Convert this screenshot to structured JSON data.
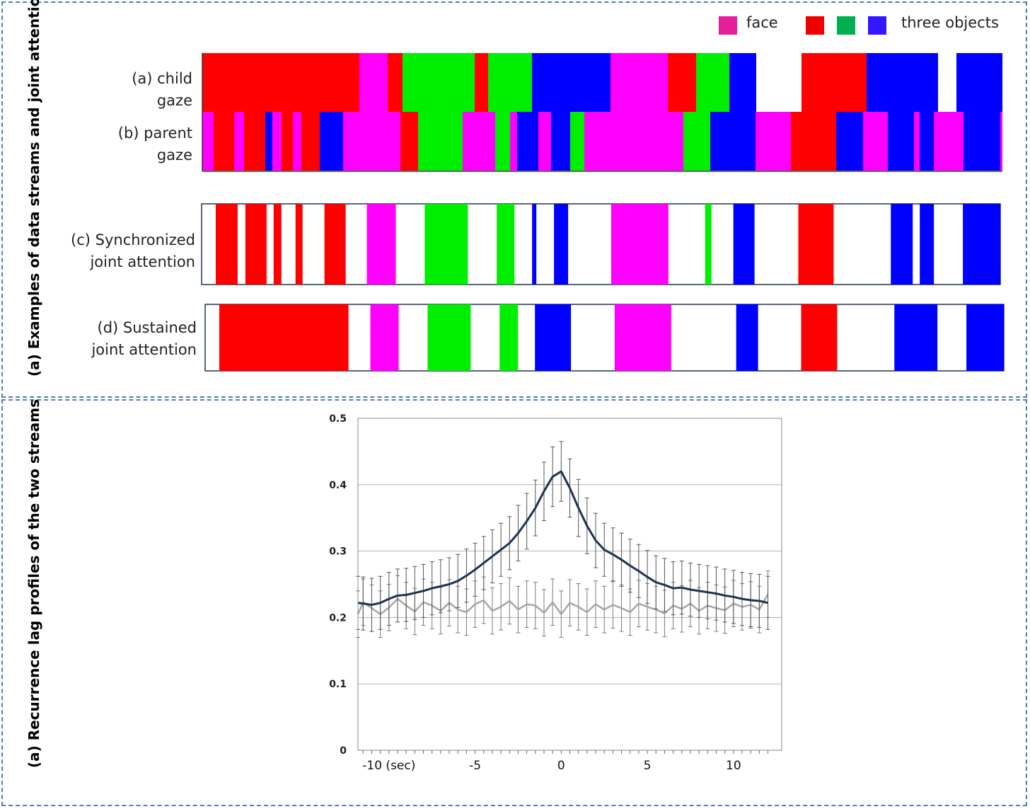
{
  "colors": {
    "face": "#ff00ff",
    "red": "#ff0000",
    "green": "#00ee00",
    "blue": "#0000ff",
    "legend_face": "#e61e9a",
    "legend_red": "#ee0000",
    "legend_green": "#00b050",
    "legend_blue": "#3316ff",
    "panel_border": "#4f7fb8"
  },
  "top_panel": {
    "side_label": "(a) Examples of data streams and joint attention",
    "legend": {
      "face_label": "face",
      "objects_label": "three objects"
    },
    "rows": {
      "child": [
        "(a) child",
        "gaze"
      ],
      "parent": [
        "(b) parent",
        "gaze"
      ],
      "sync": [
        "(c) Synchronized",
        "joint attention"
      ],
      "sustained": [
        "(d) Sustained",
        "joint attention"
      ]
    },
    "segments": {
      "child": [
        [
          "red",
          0,
          222
        ],
        [
          "face",
          222,
          262
        ],
        [
          "red",
          262,
          283
        ],
        [
          "green",
          283,
          385
        ],
        [
          "red",
          385,
          404
        ],
        [
          "green",
          404,
          466
        ],
        [
          "blue",
          466,
          577
        ],
        [
          "face",
          577,
          658
        ],
        [
          "red",
          658,
          698
        ],
        [
          "green",
          698,
          745
        ],
        [
          "blue",
          745,
          783
        ],
        [
          "red",
          847,
          939
        ],
        [
          "blue",
          939,
          1040
        ],
        [
          "blue",
          1066,
          1131
        ]
      ],
      "parent": [
        [
          "face",
          0,
          16
        ],
        [
          "red",
          16,
          45
        ],
        [
          "face",
          45,
          59
        ],
        [
          "red",
          59,
          89
        ],
        [
          "blue",
          89,
          99
        ],
        [
          "face",
          99,
          112
        ],
        [
          "red",
          112,
          128
        ],
        [
          "face",
          128,
          140
        ],
        [
          "red",
          140,
          166
        ],
        [
          "blue",
          166,
          199
        ],
        [
          "face",
          199,
          280
        ],
        [
          "red",
          280,
          305
        ],
        [
          "green",
          305,
          368
        ],
        [
          "face",
          368,
          414
        ],
        [
          "green",
          414,
          435
        ],
        [
          "face",
          435,
          445
        ],
        [
          "blue",
          445,
          475
        ],
        [
          "face",
          475,
          493
        ],
        [
          "blue",
          493,
          520
        ],
        [
          "green",
          520,
          540
        ],
        [
          "face",
          540,
          680
        ],
        [
          "green",
          680,
          718
        ],
        [
          "blue",
          718,
          782
        ],
        [
          "face",
          782,
          832
        ],
        [
          "red",
          832,
          896
        ],
        [
          "blue",
          896,
          934
        ],
        [
          "face",
          934,
          969
        ],
        [
          "blue",
          969,
          1006
        ],
        [
          "face",
          1006,
          1014
        ],
        [
          "blue",
          1014,
          1034
        ],
        [
          "face",
          1034,
          1076
        ],
        [
          "blue",
          1076,
          1128
        ],
        [
          "face",
          1128,
          1131
        ]
      ],
      "sync": [
        [
          "red",
          20,
          51
        ],
        [
          "red",
          62,
          92
        ],
        [
          "red",
          102,
          113
        ],
        [
          "red",
          133,
          143
        ],
        [
          "red",
          174,
          204
        ],
        [
          "face",
          234,
          275
        ],
        [
          "green",
          316,
          377
        ],
        [
          "green",
          418,
          443
        ],
        [
          "blue",
          468,
          474
        ],
        [
          "blue",
          499,
          519
        ],
        [
          "face",
          580,
          661
        ],
        [
          "green",
          713,
          722
        ],
        [
          "blue",
          753,
          783
        ],
        [
          "red",
          845,
          895
        ],
        [
          "blue",
          976,
          1007
        ],
        [
          "blue",
          1017,
          1037
        ],
        [
          "blue",
          1078,
          1131
        ]
      ],
      "sustained": [
        [
          "red",
          20,
          203
        ],
        [
          "face",
          234,
          274
        ],
        [
          "green",
          315,
          376
        ],
        [
          "green",
          417,
          443
        ],
        [
          "blue",
          467,
          518
        ],
        [
          "face",
          580,
          660
        ],
        [
          "blue",
          752,
          783
        ],
        [
          "red",
          844,
          895
        ],
        [
          "blue",
          976,
          1037
        ],
        [
          "blue",
          1078,
          1131
        ]
      ]
    }
  },
  "bottom_panel": {
    "side_label": "(a) Recurrence lag profiles  of the two streams"
  },
  "chart_data": {
    "type": "line",
    "title": "",
    "xlabel": "",
    "ylabel": "",
    "xlim": [
      -11.8,
      12.8
    ],
    "ylim": [
      0,
      0.5
    ],
    "yticks": [
      "0",
      "0.1",
      "0.2",
      "0.3",
      "0.4",
      "0.5"
    ],
    "xtick_labels": [
      {
        "x": -10,
        "label": "-10 (sec)"
      },
      {
        "x": -5,
        "label": "-5"
      },
      {
        "x": 0,
        "label": "0"
      },
      {
        "x": 5,
        "label": "5"
      },
      {
        "x": 10,
        "label": "10"
      }
    ],
    "grid": true,
    "x": [
      -12.0,
      -11.5,
      -11.0,
      -10.5,
      -10.0,
      -9.5,
      -9.0,
      -8.5,
      -8.0,
      -7.5,
      -7.0,
      -6.5,
      -6.0,
      -5.5,
      -5.0,
      -4.5,
      -4.0,
      -3.5,
      -3.0,
      -2.5,
      -2.0,
      -1.5,
      -1.0,
      -0.5,
      0.0,
      0.5,
      1.0,
      1.5,
      2.0,
      2.5,
      3.0,
      3.5,
      4.0,
      4.5,
      5.0,
      5.5,
      6.0,
      6.5,
      7.0,
      7.5,
      8.0,
      8.5,
      9.0,
      9.5,
      10.0,
      10.5,
      11.0,
      11.5,
      12.0
    ],
    "series": [
      {
        "name": "",
        "color": "#1f3350",
        "values": [
          0.222,
          0.221,
          0.219,
          0.222,
          0.228,
          0.233,
          0.234,
          0.237,
          0.24,
          0.244,
          0.247,
          0.25,
          0.255,
          0.263,
          0.272,
          0.282,
          0.292,
          0.302,
          0.312,
          0.327,
          0.345,
          0.365,
          0.39,
          0.412,
          0.42,
          0.395,
          0.365,
          0.338,
          0.316,
          0.302,
          0.295,
          0.287,
          0.278,
          0.27,
          0.261,
          0.253,
          0.249,
          0.244,
          0.245,
          0.242,
          0.24,
          0.238,
          0.236,
          0.233,
          0.231,
          0.228,
          0.226,
          0.225,
          0.222
        ],
        "errors": [
          0.04,
          0.04,
          0.04,
          0.04,
          0.04,
          0.04,
          0.04,
          0.04,
          0.04,
          0.04,
          0.04,
          0.04,
          0.04,
          0.04,
          0.04,
          0.04,
          0.04,
          0.04,
          0.04,
          0.042,
          0.042,
          0.042,
          0.044,
          0.045,
          0.045,
          0.044,
          0.043,
          0.042,
          0.041,
          0.04,
          0.04,
          0.04,
          0.04,
          0.04,
          0.04,
          0.04,
          0.04,
          0.04,
          0.04,
          0.04,
          0.04,
          0.04,
          0.04,
          0.04,
          0.04,
          0.04,
          0.04,
          0.04,
          0.04
        ]
      },
      {
        "name": "",
        "color": "#a6a6a6",
        "values": [
          0.205,
          0.223,
          0.214,
          0.205,
          0.215,
          0.228,
          0.218,
          0.209,
          0.223,
          0.218,
          0.21,
          0.222,
          0.212,
          0.208,
          0.22,
          0.226,
          0.21,
          0.216,
          0.225,
          0.212,
          0.22,
          0.218,
          0.207,
          0.223,
          0.205,
          0.222,
          0.216,
          0.208,
          0.22,
          0.212,
          0.219,
          0.214,
          0.208,
          0.221,
          0.216,
          0.212,
          0.206,
          0.218,
          0.213,
          0.221,
          0.21,
          0.218,
          0.214,
          0.211,
          0.221,
          0.216,
          0.219,
          0.212,
          0.235
        ],
        "errors": [
          0.035,
          0.035,
          0.035,
          0.035,
          0.035,
          0.035,
          0.035,
          0.035,
          0.035,
          0.035,
          0.035,
          0.035,
          0.035,
          0.035,
          0.035,
          0.035,
          0.035,
          0.035,
          0.035,
          0.035,
          0.035,
          0.035,
          0.035,
          0.035,
          0.035,
          0.035,
          0.035,
          0.035,
          0.035,
          0.035,
          0.035,
          0.035,
          0.035,
          0.035,
          0.035,
          0.035,
          0.035,
          0.035,
          0.035,
          0.035,
          0.035,
          0.035,
          0.035,
          0.035,
          0.035,
          0.035,
          0.035,
          0.035,
          0.035
        ]
      }
    ]
  }
}
